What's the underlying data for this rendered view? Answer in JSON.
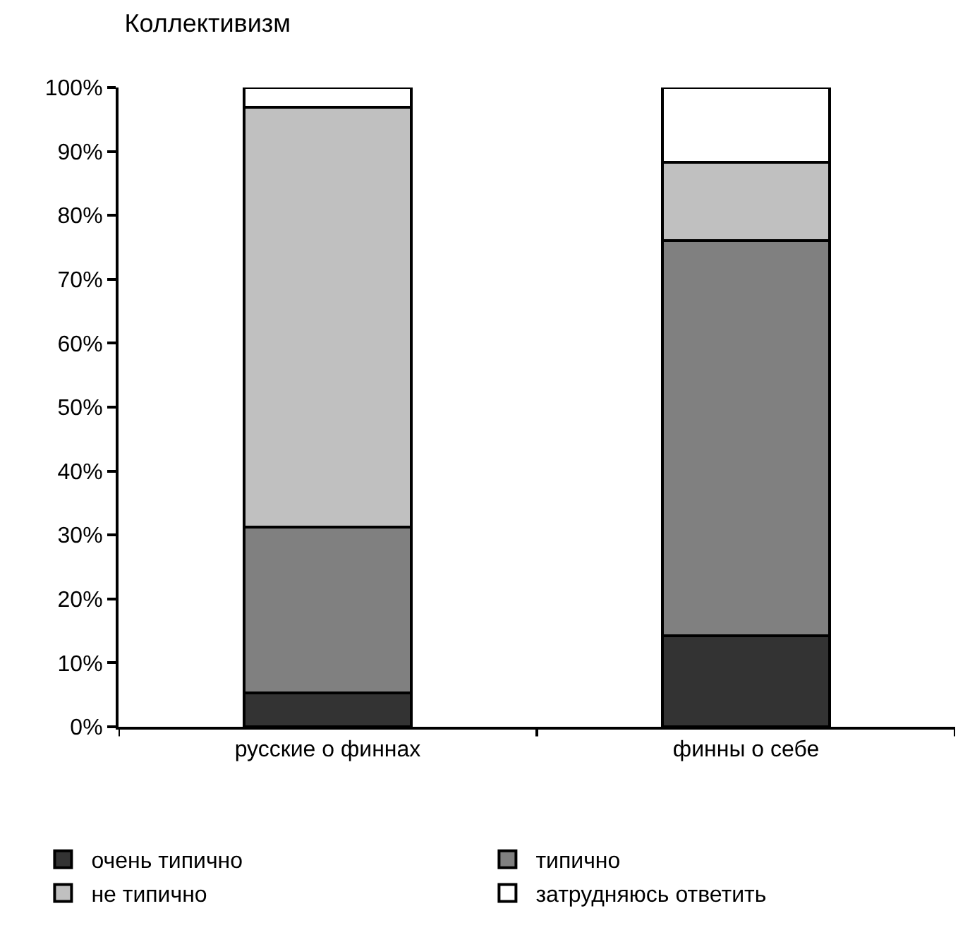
{
  "chart_data": {
    "type": "bar",
    "stacked": true,
    "title": "Коллективизм",
    "categories": [
      "русские о финнах",
      "финны о себе"
    ],
    "series": [
      {
        "name": "очень типично",
        "color": "#333333",
        "values": [
          5.3,
          14.2
        ]
      },
      {
        "name": "типично",
        "color": "#808080",
        "values": [
          25.9,
          61.9
        ]
      },
      {
        "name": "не типично",
        "color": "#c0c0c0",
        "values": [
          65.7,
          12.2
        ]
      },
      {
        "name": "затрудняюсь ответить",
        "color": "#ffffff",
        "values": [
          3.1,
          11.7
        ]
      }
    ],
    "ylim": [
      0,
      100
    ],
    "yticks": [
      {
        "value": 0,
        "label": "0%"
      },
      {
        "value": 10,
        "label": "10%"
      },
      {
        "value": 20,
        "label": "20%"
      },
      {
        "value": 30,
        "label": "30%"
      },
      {
        "value": 40,
        "label": "40%"
      },
      {
        "value": 50,
        "label": "50%"
      },
      {
        "value": 60,
        "label": "60%"
      },
      {
        "value": 70,
        "label": "70%"
      },
      {
        "value": 80,
        "label": "80%"
      },
      {
        "value": 90,
        "label": "90%"
      },
      {
        "value": 100,
        "label": "100%"
      }
    ],
    "legend": "bottom"
  }
}
